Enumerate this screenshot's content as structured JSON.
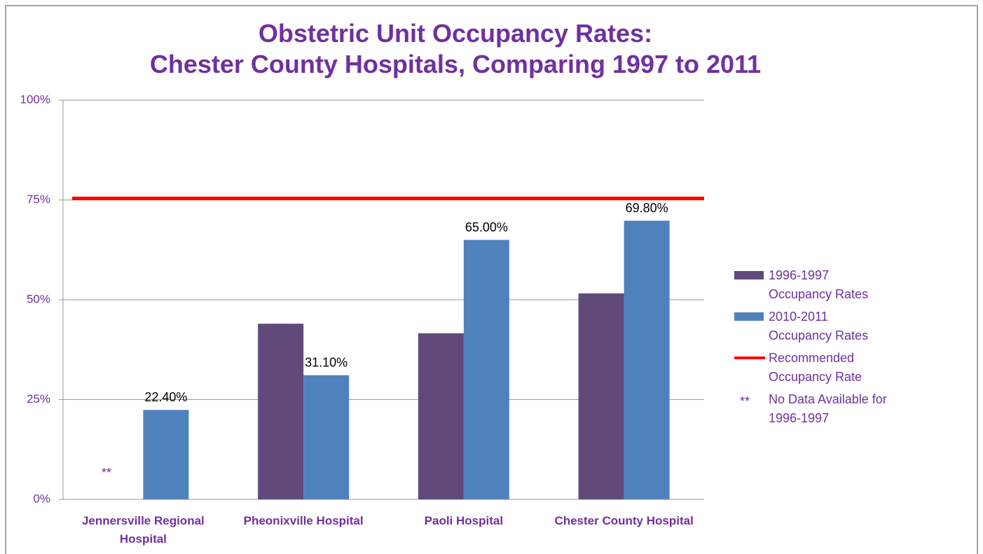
{
  "chart_data": {
    "type": "bar",
    "title": "Obstetric Unit Occupancy Rates:\nChester County Hospitals, Comparing 1997 to 2011",
    "categories": [
      "Jennersville Regional Hospital",
      "Pheonixville Hospital",
      "Paoli Hospital",
      "Chester County Hospital"
    ],
    "series": [
      {
        "name": "1996-1997 Occupancy Rates",
        "color": "#604a7b",
        "values": [
          null,
          44,
          41.6,
          51.6
        ]
      },
      {
        "name": "2010-2011 Occupancy Rates",
        "color": "#4f81bd",
        "values": [
          22.4,
          31.1,
          65,
          69.8
        ],
        "value_labels": [
          "22.40%",
          "31.10%",
          "65.00%",
          "69.80%"
        ]
      }
    ],
    "reference_line": {
      "name": "Recommended Occupancy Rate",
      "value": 75.4,
      "color": "#ff0000"
    },
    "note": {
      "symbol": "**",
      "text": "No Data Available for 1996-1997"
    },
    "ylim": [
      0,
      100
    ],
    "yticks": [
      {
        "value": 0,
        "label": "0%"
      },
      {
        "value": 25,
        "label": "25%"
      },
      {
        "value": 50,
        "label": "50%"
      },
      {
        "value": 75,
        "label": "75%"
      },
      {
        "value": 100,
        "label": "100%"
      }
    ],
    "grid": true,
    "legend": "right"
  }
}
